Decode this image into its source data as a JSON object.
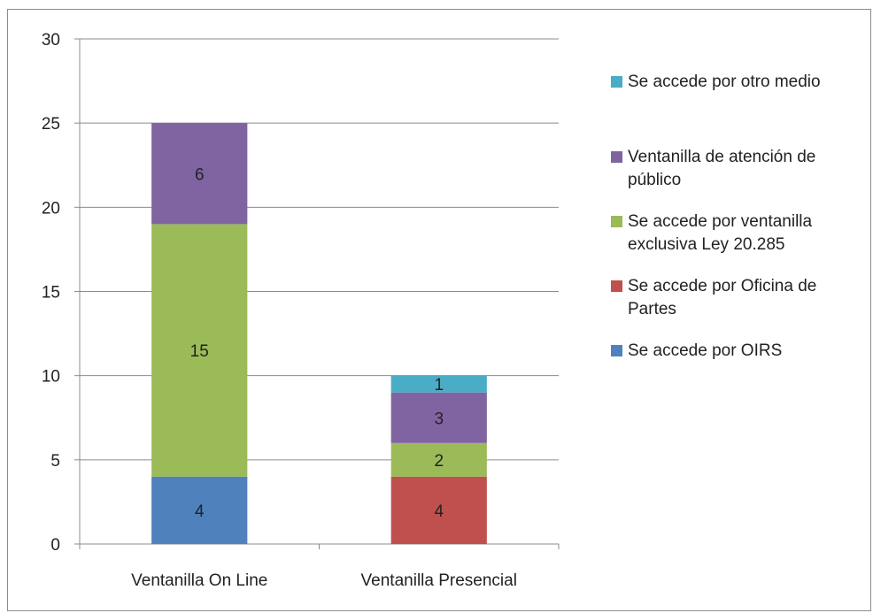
{
  "chart_data": {
    "type": "bar",
    "stacked": true,
    "categories": [
      "Ventanilla On Line",
      "Ventanilla Presencial"
    ],
    "series": [
      {
        "name": "Se accede por OIRS",
        "color": "#4f81bd",
        "values": [
          4,
          0
        ]
      },
      {
        "name": "Se accede por Oficina de Partes",
        "color": "#c0504d",
        "values": [
          0,
          4
        ]
      },
      {
        "name": "Se accede por ventanilla exclusiva Ley 20.285",
        "color": "#9bbb59",
        "values": [
          15,
          2
        ]
      },
      {
        "name": "Ventanilla de atención de público",
        "color": "#8064a2",
        "values": [
          6,
          3
        ]
      },
      {
        "name": "Se accede por otro medio",
        "color": "#4bacc6",
        "values": [
          0,
          1
        ]
      }
    ],
    "ylim": [
      0,
      30
    ],
    "yticks": [
      0,
      5,
      10,
      15,
      20,
      25,
      30
    ],
    "grid": true,
    "legend_position": "right",
    "legend_order": [
      "Se accede por otro medio",
      "Ventanilla de atención de público",
      "Se accede por ventanilla exclusiva Ley 20.285",
      "Se accede por Oficina de Partes",
      "Se accede por OIRS"
    ],
    "title": "",
    "xlabel": "",
    "ylabel": ""
  }
}
